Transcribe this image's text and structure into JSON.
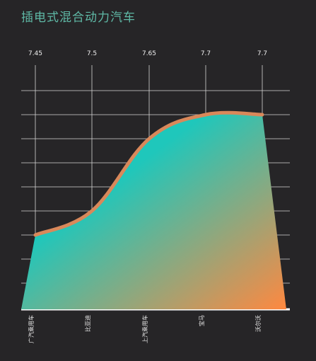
{
  "chart_data": {
    "type": "area",
    "title": "插电式混合动力汽车",
    "categories": [
      "广汽乘用车",
      "比亚迪",
      "上汽乘用车",
      "宝马",
      "沃尔沃"
    ],
    "top_labels": [
      "7.45",
      "7.5",
      "7.65",
      "7.7",
      "7.7"
    ],
    "values": [
      7.45,
      7.5,
      7.65,
      7.7,
      7.7
    ],
    "grid": true,
    "legend": "none",
    "colors": {
      "background": "#262527",
      "title": "#5fb9a6",
      "line": "#d9885a",
      "fill_start": "#1fc7bb",
      "fill_end": "#ff8840",
      "grid": "#d6d6d6",
      "baseline": "#ffffff"
    }
  }
}
